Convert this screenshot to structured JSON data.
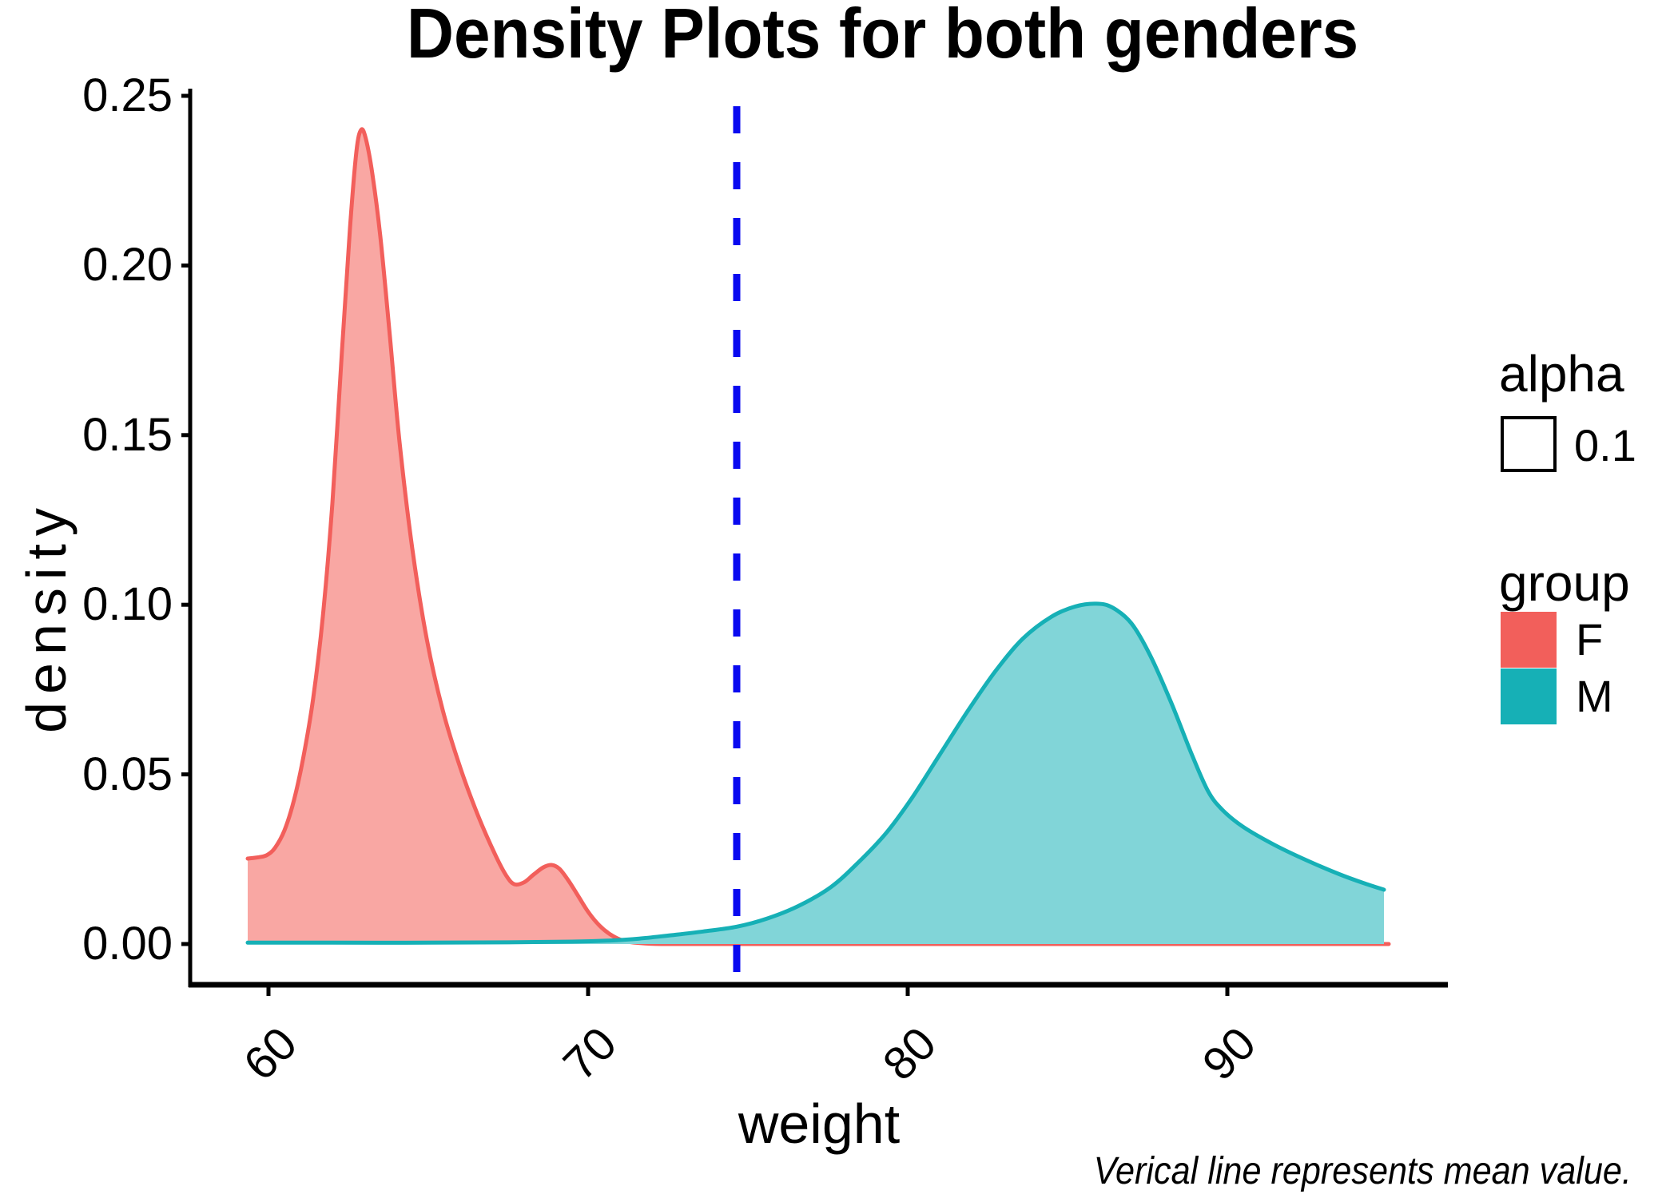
{
  "chart_data": {
    "type": "area",
    "title": "Density Plots for both genders",
    "xlabel": "weight",
    "ylabel": "density",
    "caption": "Verical line represents mean value.",
    "x_ticks": [
      60,
      70,
      80,
      90
    ],
    "x_tick_labels": [
      "60",
      "70",
      "80",
      "90"
    ],
    "y_ticks": [
      0.0,
      0.05,
      0.1,
      0.15,
      0.2,
      0.25
    ],
    "y_tick_labels": [
      "0.00",
      "0.05",
      "0.10",
      "0.15",
      "0.20",
      "0.25"
    ],
    "xlim": [
      57.7,
      96.8
    ],
    "ylim": [
      0,
      0.2525
    ],
    "grid": false,
    "legend_position": "right",
    "vline": {
      "x": 74.65,
      "color": "#0909F0",
      "style": "dashed",
      "meaning": "mean value"
    },
    "series": [
      {
        "name": "F",
        "stroke": "#F25F5B",
        "fill": "#F9A7A3",
        "points": [
          [
            59.35,
            0.0252
          ],
          [
            59.7,
            0.0256
          ],
          [
            59.95,
            0.0262
          ],
          [
            60.2,
            0.0283
          ],
          [
            60.5,
            0.0335
          ],
          [
            60.8,
            0.0425
          ],
          [
            61.1,
            0.0555
          ],
          [
            61.4,
            0.0725
          ],
          [
            61.7,
            0.0965
          ],
          [
            62.0,
            0.13
          ],
          [
            62.3,
            0.175
          ],
          [
            62.55,
            0.211
          ],
          [
            62.75,
            0.2335
          ],
          [
            62.9,
            0.24
          ],
          [
            63.05,
            0.2372
          ],
          [
            63.25,
            0.227
          ],
          [
            63.5,
            0.2085
          ],
          [
            63.8,
            0.179
          ],
          [
            64.1,
            0.148
          ],
          [
            64.5,
            0.1165
          ],
          [
            64.95,
            0.09
          ],
          [
            65.45,
            0.069
          ],
          [
            66.0,
            0.052
          ],
          [
            66.55,
            0.038
          ],
          [
            67.1,
            0.0262
          ],
          [
            67.45,
            0.02
          ],
          [
            67.7,
            0.0176
          ],
          [
            68.0,
            0.0182
          ],
          [
            68.3,
            0.0205
          ],
          [
            68.6,
            0.0226
          ],
          [
            68.85,
            0.0233
          ],
          [
            69.1,
            0.0222
          ],
          [
            69.4,
            0.0185
          ],
          [
            69.7,
            0.014
          ],
          [
            70.0,
            0.0095
          ],
          [
            70.35,
            0.0055
          ],
          [
            70.7,
            0.0028
          ],
          [
            71.1,
            0.001
          ],
          [
            71.6,
            0.0003
          ],
          [
            72.3,
            0.0
          ],
          [
            74.0,
            0.0
          ],
          [
            77.0,
            0.0
          ],
          [
            81.0,
            0.0
          ],
          [
            85.0,
            0.0
          ],
          [
            89.0,
            0.0
          ],
          [
            92.0,
            0.0
          ],
          [
            95.05,
            0.0
          ]
        ]
      },
      {
        "name": "M",
        "stroke": "#16B0B6",
        "fill": "#81D5D8",
        "points": [
          [
            59.35,
            0.0004
          ],
          [
            62.0,
            0.0004
          ],
          [
            65.0,
            0.0004
          ],
          [
            67.5,
            0.0005
          ],
          [
            69.5,
            0.0007
          ],
          [
            70.6,
            0.001
          ],
          [
            71.6,
            0.0016
          ],
          [
            72.6,
            0.0026
          ],
          [
            73.6,
            0.0037
          ],
          [
            74.65,
            0.0051
          ],
          [
            75.6,
            0.0075
          ],
          [
            76.6,
            0.0113
          ],
          [
            77.6,
            0.0168
          ],
          [
            78.45,
            0.024
          ],
          [
            79.35,
            0.033
          ],
          [
            80.15,
            0.0433
          ],
          [
            81.0,
            0.0558
          ],
          [
            81.9,
            0.069
          ],
          [
            82.75,
            0.0805
          ],
          [
            83.6,
            0.09
          ],
          [
            84.5,
            0.0965
          ],
          [
            85.25,
            0.0995
          ],
          [
            85.9,
            0.1003
          ],
          [
            86.4,
            0.0992
          ],
          [
            87.0,
            0.0945
          ],
          [
            87.6,
            0.0848
          ],
          [
            88.25,
            0.071
          ],
          [
            88.9,
            0.0556
          ],
          [
            89.4,
            0.045
          ],
          [
            89.85,
            0.0395
          ],
          [
            90.5,
            0.0345
          ],
          [
            91.5,
            0.0291
          ],
          [
            92.5,
            0.0246
          ],
          [
            93.5,
            0.0206
          ],
          [
            94.25,
            0.018
          ],
          [
            94.9,
            0.016
          ]
        ]
      }
    ]
  },
  "legend": {
    "alpha": {
      "title": "alpha",
      "items": [
        {
          "label": "0.1",
          "fill": "#FFFFFF",
          "border": "#000000"
        }
      ]
    },
    "group": {
      "title": "group",
      "items": [
        {
          "label": "F",
          "color": "#F25F5B"
        },
        {
          "label": "M",
          "color": "#16B0B6"
        }
      ]
    }
  }
}
